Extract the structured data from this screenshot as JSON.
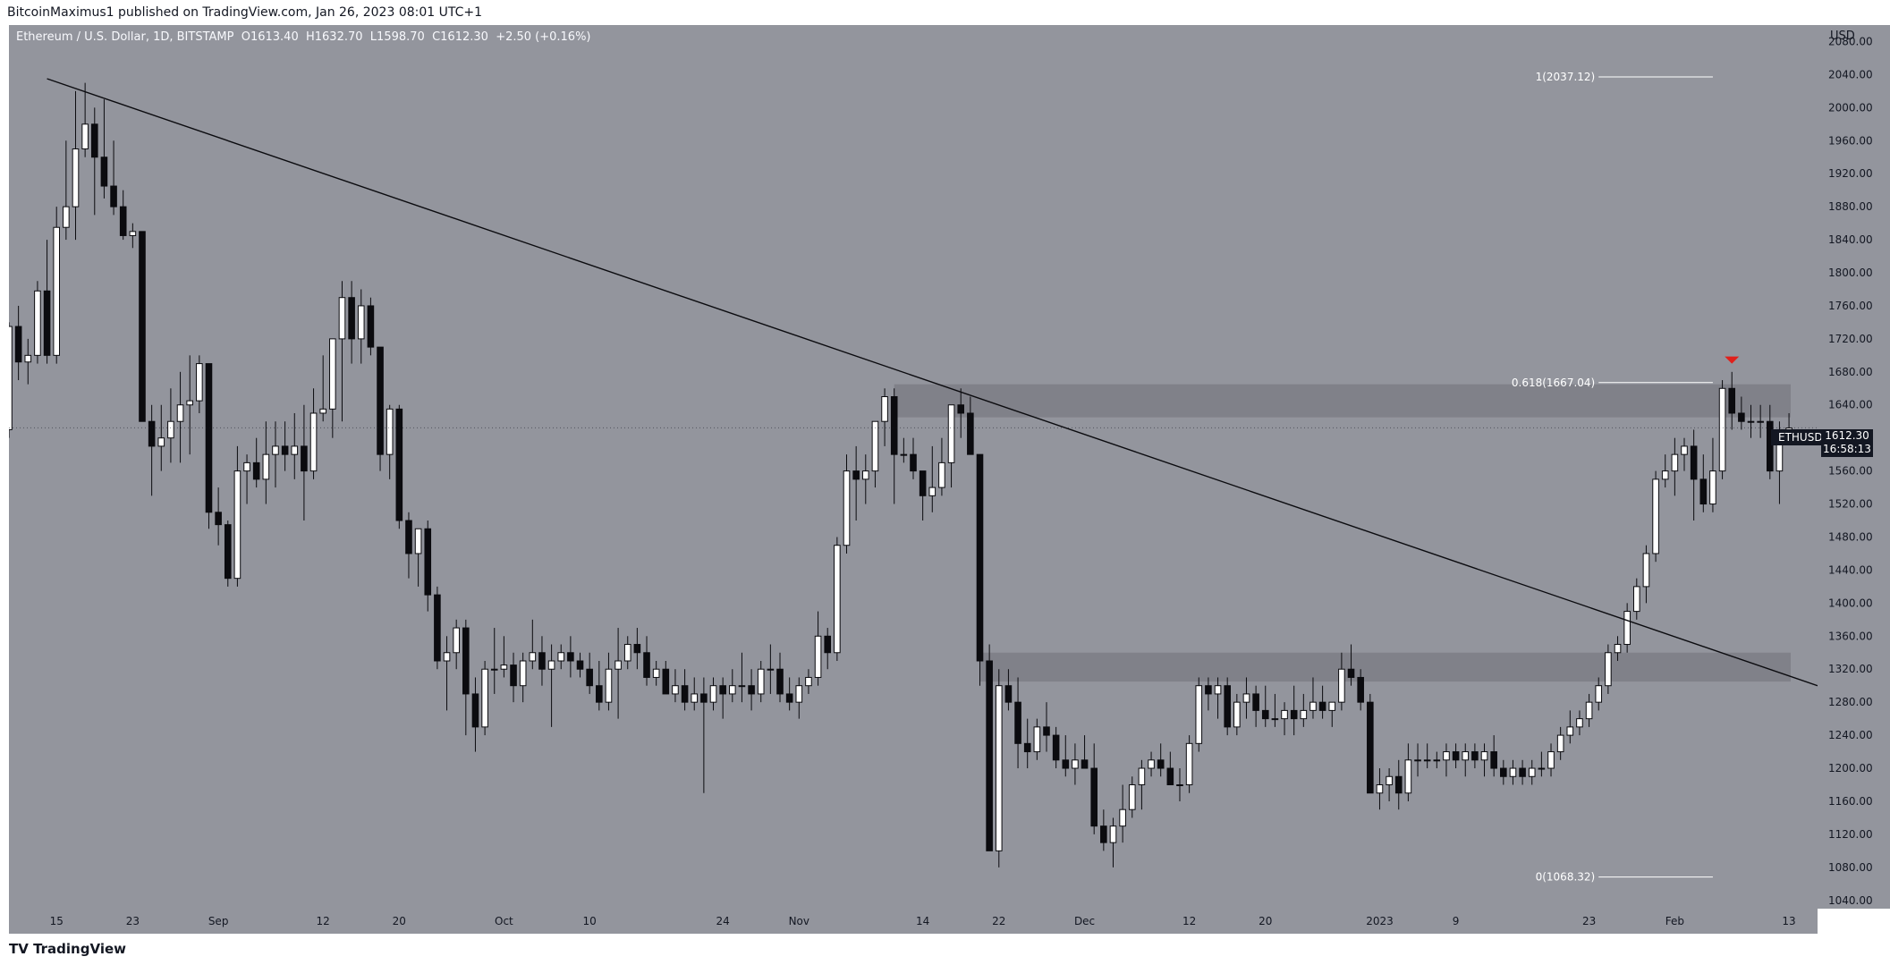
{
  "header": {
    "published": "BitcoinMaximus1 published on TradingView.com, Jan 26, 2023 08:01 UTC+1"
  },
  "symbol": {
    "name": "Ethereum / U.S. Dollar, 1D, BITSTAMP",
    "o_label": "O",
    "o": "1613.40",
    "h_label": "H",
    "h": "1632.70",
    "l_label": "L",
    "l": "1598.70",
    "c_label": "C",
    "c": "1612.30",
    "change": "+2.50 (+0.16%)"
  },
  "price_axis": {
    "currency": "USD",
    "ticks": [
      "2080.00",
      "2040.00",
      "2000.00",
      "1960.00",
      "1920.00",
      "1880.00",
      "1840.00",
      "1800.00",
      "1760.00",
      "1720.00",
      "1680.00",
      "1640.00",
      "1600.00",
      "1560.00",
      "1520.00",
      "1480.00",
      "1440.00",
      "1400.00",
      "1360.00",
      "1320.00",
      "1280.00",
      "1240.00",
      "1200.00",
      "1160.00",
      "1120.00",
      "1080.00",
      "1040.00"
    ]
  },
  "time_axis": {
    "labels": [
      "15",
      "23",
      "Sep",
      "12",
      "20",
      "Oct",
      "10",
      "24",
      "Nov",
      "14",
      "22",
      "Dec",
      "12",
      "20",
      "2023",
      "9",
      "23",
      "Feb",
      "13"
    ]
  },
  "last_price": {
    "ticker": "ETHUSD",
    "price": "1612.30",
    "countdown": "16:58:13"
  },
  "fib_labels": {
    "top": "1(2037.12)",
    "mid": "0.618(1667.04)",
    "bottom": "0(1068.32)"
  },
  "footer": {
    "brand": "TradingView"
  },
  "colors": {
    "plot_bg": "#93959d",
    "bull": "#ffffff",
    "bear": "#0b0b0f",
    "zone": "#7c7e86",
    "arrow": "#e0201b"
  },
  "chart_data": {
    "type": "candlestick",
    "title": "Ethereum / U.S. Dollar, 1D, BITSTAMP",
    "y_unit": "USD",
    "ylim": [
      1030,
      2100
    ],
    "x_range": [
      "2022-08-10",
      "2023-02-16"
    ],
    "candles": [
      [
        "2022-08-10",
        1610,
        1740,
        1600,
        1735
      ],
      [
        "2022-08-11",
        1735,
        1760,
        1670,
        1692
      ],
      [
        "2022-08-12",
        1692,
        1720,
        1665,
        1700
      ],
      [
        "2022-08-13",
        1700,
        1790,
        1690,
        1778
      ],
      [
        "2022-08-14",
        1778,
        1840,
        1690,
        1700
      ],
      [
        "2022-08-15",
        1700,
        1880,
        1690,
        1855
      ],
      [
        "2022-08-16",
        1855,
        1960,
        1840,
        1880
      ],
      [
        "2022-08-17",
        1880,
        2020,
        1840,
        1950
      ],
      [
        "2022-08-18",
        1950,
        2030,
        1940,
        1980
      ],
      [
        "2022-08-19",
        1980,
        2000,
        1870,
        1940
      ],
      [
        "2022-08-20",
        1940,
        2010,
        1890,
        1905
      ],
      [
        "2022-08-21",
        1905,
        1960,
        1870,
        1880
      ],
      [
        "2022-08-22",
        1880,
        1900,
        1840,
        1845
      ],
      [
        "2022-08-23",
        1845,
        1860,
        1830,
        1850
      ],
      [
        "2022-08-24",
        1850,
        1850,
        1620,
        1620
      ],
      [
        "2022-08-25",
        1620,
        1640,
        1530,
        1590
      ],
      [
        "2022-08-26",
        1590,
        1640,
        1560,
        1600
      ],
      [
        "2022-08-27",
        1600,
        1660,
        1570,
        1620
      ],
      [
        "2022-08-28",
        1620,
        1680,
        1570,
        1640
      ],
      [
        "2022-08-29",
        1640,
        1700,
        1580,
        1645
      ],
      [
        "2022-08-30",
        1645,
        1700,
        1630,
        1690
      ],
      [
        "2022-08-31",
        1690,
        1690,
        1490,
        1510
      ],
      [
        "2022-09-01",
        1510,
        1540,
        1470,
        1495
      ],
      [
        "2022-09-02",
        1495,
        1500,
        1420,
        1430
      ],
      [
        "2022-09-03",
        1430,
        1590,
        1420,
        1560
      ],
      [
        "2022-09-04",
        1560,
        1580,
        1520,
        1570
      ],
      [
        "2022-09-05",
        1570,
        1600,
        1540,
        1550
      ],
      [
        "2022-09-06",
        1550,
        1620,
        1520,
        1580
      ],
      [
        "2022-09-07",
        1580,
        1620,
        1540,
        1590
      ],
      [
        "2022-09-08",
        1590,
        1620,
        1560,
        1580
      ],
      [
        "2022-09-09",
        1580,
        1630,
        1550,
        1590
      ],
      [
        "2022-09-10",
        1590,
        1640,
        1500,
        1560
      ],
      [
        "2022-09-11",
        1560,
        1660,
        1550,
        1630
      ],
      [
        "2022-09-12",
        1630,
        1700,
        1620,
        1635
      ],
      [
        "2022-09-13",
        1635,
        1720,
        1600,
        1720
      ],
      [
        "2022-09-14",
        1720,
        1790,
        1620,
        1770
      ],
      [
        "2022-09-15",
        1770,
        1790,
        1690,
        1720
      ],
      [
        "2022-09-16",
        1720,
        1780,
        1690,
        1760
      ],
      [
        "2022-09-17",
        1760,
        1770,
        1700,
        1710
      ],
      [
        "2022-09-18",
        1710,
        1710,
        1560,
        1580
      ],
      [
        "2022-09-19",
        1580,
        1640,
        1550,
        1635
      ],
      [
        "2022-09-20",
        1635,
        1640,
        1490,
        1500
      ],
      [
        "2022-09-21",
        1500,
        1510,
        1430,
        1460
      ],
      [
        "2022-09-22",
        1460,
        1490,
        1420,
        1490
      ],
      [
        "2022-09-23",
        1490,
        1500,
        1390,
        1410
      ],
      [
        "2022-09-24",
        1410,
        1420,
        1320,
        1330
      ],
      [
        "2022-09-25",
        1330,
        1360,
        1270,
        1340
      ],
      [
        "2022-09-26",
        1340,
        1380,
        1320,
        1370
      ],
      [
        "2022-09-27",
        1370,
        1380,
        1240,
        1290
      ],
      [
        "2022-09-28",
        1290,
        1310,
        1220,
        1250
      ],
      [
        "2022-09-29",
        1250,
        1330,
        1240,
        1320
      ],
      [
        "2022-09-30",
        1320,
        1370,
        1290,
        1320
      ],
      [
        "2022-10-01",
        1320,
        1360,
        1310,
        1325
      ],
      [
        "2022-10-02",
        1325,
        1340,
        1280,
        1300
      ],
      [
        "2022-10-03",
        1300,
        1340,
        1280,
        1330
      ],
      [
        "2022-10-04",
        1330,
        1380,
        1320,
        1340
      ],
      [
        "2022-10-05",
        1340,
        1360,
        1300,
        1320
      ],
      [
        "2022-10-06",
        1320,
        1350,
        1250,
        1330
      ],
      [
        "2022-10-07",
        1330,
        1350,
        1320,
        1340
      ],
      [
        "2022-10-08",
        1340,
        1360,
        1310,
        1330
      ],
      [
        "2022-10-09",
        1330,
        1340,
        1310,
        1320
      ],
      [
        "2022-10-10",
        1320,
        1340,
        1290,
        1300
      ],
      [
        "2022-10-11",
        1300,
        1330,
        1270,
        1280
      ],
      [
        "2022-10-12",
        1280,
        1340,
        1270,
        1320
      ],
      [
        "2022-10-13",
        1320,
        1370,
        1260,
        1330
      ],
      [
        "2022-10-14",
        1330,
        1360,
        1320,
        1350
      ],
      [
        "2022-10-15",
        1350,
        1370,
        1320,
        1340
      ],
      [
        "2022-10-16",
        1340,
        1360,
        1300,
        1310
      ],
      [
        "2022-10-17",
        1310,
        1330,
        1300,
        1320
      ],
      [
        "2022-10-18",
        1320,
        1330,
        1290,
        1290
      ],
      [
        "2022-10-19",
        1290,
        1320,
        1280,
        1300
      ],
      [
        "2022-10-20",
        1300,
        1320,
        1270,
        1280
      ],
      [
        "2022-10-21",
        1280,
        1310,
        1270,
        1290
      ],
      [
        "2022-10-22",
        1290,
        1310,
        1170,
        1280
      ],
      [
        "2022-10-23",
        1280,
        1310,
        1270,
        1300
      ],
      [
        "2022-10-24",
        1300,
        1310,
        1260,
        1290
      ],
      [
        "2022-10-25",
        1290,
        1320,
        1280,
        1300
      ],
      [
        "2022-10-26",
        1300,
        1340,
        1280,
        1300
      ],
      [
        "2022-10-27",
        1300,
        1320,
        1270,
        1290
      ],
      [
        "2022-10-28",
        1290,
        1330,
        1280,
        1320
      ],
      [
        "2022-10-29",
        1320,
        1350,
        1290,
        1320
      ],
      [
        "2022-10-30",
        1320,
        1340,
        1280,
        1290
      ],
      [
        "2022-10-31",
        1290,
        1310,
        1270,
        1280
      ],
      [
        "2022-11-01",
        1280,
        1310,
        1260,
        1300
      ],
      [
        "2022-11-02",
        1300,
        1320,
        1290,
        1310
      ],
      [
        "2022-11-03",
        1310,
        1390,
        1300,
        1360
      ],
      [
        "2022-11-04",
        1360,
        1370,
        1320,
        1340
      ],
      [
        "2022-11-05",
        1340,
        1480,
        1330,
        1470
      ],
      [
        "2022-11-06",
        1470,
        1580,
        1460,
        1560
      ],
      [
        "2022-11-07",
        1560,
        1590,
        1500,
        1550
      ],
      [
        "2022-11-08",
        1550,
        1580,
        1520,
        1560
      ],
      [
        "2022-11-09",
        1560,
        1620,
        1540,
        1620
      ],
      [
        "2022-11-10",
        1620,
        1660,
        1590,
        1650
      ],
      [
        "2022-11-11",
        1650,
        1660,
        1520,
        1580
      ],
      [
        "2022-11-12",
        1580,
        1600,
        1570,
        1580
      ],
      [
        "2022-11-13",
        1580,
        1600,
        1550,
        1560
      ],
      [
        "2022-11-14",
        1560,
        1560,
        1500,
        1530
      ],
      [
        "2022-11-15",
        1530,
        1590,
        1510,
        1540
      ],
      [
        "2022-11-16",
        1540,
        1600,
        1530,
        1570
      ],
      [
        "2022-11-17",
        1570,
        1640,
        1540,
        1640
      ],
      [
        "2022-11-18",
        1640,
        1660,
        1600,
        1630
      ],
      [
        "2022-11-19",
        1630,
        1650,
        1580,
        1580
      ],
      [
        "2022-11-20",
        1580,
        1580,
        1300,
        1330
      ],
      [
        "2022-11-21",
        1330,
        1350,
        1110,
        1100
      ],
      [
        "2022-11-22",
        1100,
        1320,
        1080,
        1300
      ],
      [
        "2022-11-23",
        1300,
        1320,
        1270,
        1280
      ],
      [
        "2022-11-24",
        1280,
        1310,
        1200,
        1230
      ],
      [
        "2022-11-25",
        1230,
        1260,
        1200,
        1220
      ],
      [
        "2022-11-26",
        1220,
        1260,
        1210,
        1250
      ],
      [
        "2022-11-27",
        1250,
        1280,
        1220,
        1240
      ],
      [
        "2022-11-28",
        1240,
        1250,
        1200,
        1210
      ],
      [
        "2022-11-29",
        1210,
        1240,
        1190,
        1200
      ],
      [
        "2022-11-30",
        1200,
        1230,
        1180,
        1210
      ],
      [
        "2022-12-01",
        1210,
        1240,
        1200,
        1200
      ],
      [
        "2022-12-02",
        1200,
        1230,
        1120,
        1130
      ],
      [
        "2022-12-03",
        1130,
        1150,
        1100,
        1110
      ],
      [
        "2022-12-04",
        1110,
        1140,
        1080,
        1130
      ],
      [
        "2022-12-05",
        1130,
        1180,
        1110,
        1150
      ],
      [
        "2022-12-06",
        1150,
        1190,
        1140,
        1180
      ],
      [
        "2022-12-07",
        1180,
        1210,
        1150,
        1200
      ],
      [
        "2022-12-08",
        1200,
        1220,
        1190,
        1210
      ],
      [
        "2022-12-09",
        1210,
        1230,
        1190,
        1200
      ],
      [
        "2022-12-10",
        1200,
        1220,
        1180,
        1180
      ],
      [
        "2022-12-11",
        1180,
        1200,
        1160,
        1180
      ],
      [
        "2022-12-12",
        1180,
        1240,
        1170,
        1230
      ],
      [
        "2022-12-13",
        1230,
        1310,
        1220,
        1300
      ],
      [
        "2022-12-14",
        1300,
        1310,
        1270,
        1290
      ],
      [
        "2022-12-15",
        1290,
        1310,
        1260,
        1300
      ],
      [
        "2022-12-16",
        1300,
        1310,
        1240,
        1250
      ],
      [
        "2022-12-17",
        1250,
        1290,
        1240,
        1280
      ],
      [
        "2022-12-18",
        1280,
        1310,
        1260,
        1290
      ],
      [
        "2022-12-19",
        1290,
        1300,
        1250,
        1270
      ],
      [
        "2022-12-20",
        1270,
        1300,
        1250,
        1260
      ],
      [
        "2022-12-21",
        1260,
        1290,
        1250,
        1260
      ],
      [
        "2022-12-22",
        1260,
        1280,
        1240,
        1270
      ],
      [
        "2022-12-23",
        1270,
        1300,
        1240,
        1260
      ],
      [
        "2022-12-24",
        1260,
        1290,
        1250,
        1270
      ],
      [
        "2022-12-25",
        1270,
        1310,
        1260,
        1280
      ],
      [
        "2022-12-26",
        1280,
        1300,
        1260,
        1270
      ],
      [
        "2022-12-27",
        1270,
        1280,
        1250,
        1280
      ],
      [
        "2022-12-28",
        1280,
        1340,
        1270,
        1320
      ],
      [
        "2022-12-29",
        1320,
        1350,
        1300,
        1310
      ],
      [
        "2022-12-30",
        1310,
        1320,
        1270,
        1280
      ],
      [
        "2022-12-31",
        1280,
        1290,
        1180,
        1170
      ],
      [
        "2023-01-01",
        1170,
        1200,
        1150,
        1180
      ],
      [
        "2023-01-02",
        1180,
        1200,
        1160,
        1190
      ],
      [
        "2023-01-03",
        1190,
        1210,
        1150,
        1170
      ],
      [
        "2023-01-04",
        1170,
        1230,
        1160,
        1210
      ],
      [
        "2023-01-05",
        1210,
        1230,
        1190,
        1210
      ],
      [
        "2023-01-06",
        1210,
        1230,
        1200,
        1210
      ],
      [
        "2023-01-07",
        1210,
        1220,
        1200,
        1210
      ],
      [
        "2023-01-08",
        1210,
        1230,
        1190,
        1220
      ],
      [
        "2023-01-09",
        1220,
        1230,
        1200,
        1210
      ],
      [
        "2023-01-10",
        1210,
        1230,
        1190,
        1220
      ],
      [
        "2023-01-11",
        1220,
        1230,
        1200,
        1210
      ],
      [
        "2023-01-12",
        1210,
        1230,
        1190,
        1220
      ],
      [
        "2023-01-13",
        1220,
        1240,
        1190,
        1200
      ],
      [
        "2023-01-14",
        1200,
        1210,
        1180,
        1190
      ],
      [
        "2023-01-15",
        1190,
        1210,
        1180,
        1200
      ],
      [
        "2023-01-16",
        1200,
        1210,
        1180,
        1190
      ],
      [
        "2023-01-17",
        1190,
        1210,
        1180,
        1200
      ],
      [
        "2023-01-18",
        1200,
        1220,
        1190,
        1200
      ],
      [
        "2023-01-19",
        1200,
        1230,
        1190,
        1220
      ],
      [
        "2023-01-20",
        1220,
        1250,
        1210,
        1240
      ],
      [
        "2023-01-21",
        1240,
        1270,
        1230,
        1250
      ],
      [
        "2023-01-22",
        1250,
        1270,
        1240,
        1260
      ],
      [
        "2023-01-23",
        1260,
        1290,
        1250,
        1280
      ],
      [
        "2023-01-24",
        1280,
        1310,
        1270,
        1300
      ],
      [
        "2023-01-25",
        1300,
        1350,
        1290,
        1340
      ],
      [
        "2023-01-26",
        1340,
        1360,
        1330,
        1350
      ],
      [
        "2023-01-27",
        1350,
        1400,
        1340,
        1390
      ],
      [
        "2023-01-28",
        1390,
        1430,
        1380,
        1420
      ],
      [
        "2023-01-29",
        1420,
        1470,
        1400,
        1460
      ],
      [
        "2023-01-30",
        1460,
        1560,
        1450,
        1550
      ],
      [
        "2023-01-31",
        1550,
        1580,
        1540,
        1560
      ],
      [
        "2023-02-01",
        1560,
        1600,
        1530,
        1580
      ],
      [
        "2023-02-02",
        1580,
        1600,
        1560,
        1590
      ],
      [
        "2023-02-03",
        1590,
        1610,
        1500,
        1550
      ],
      [
        "2023-02-04",
        1550,
        1580,
        1510,
        1520
      ],
      [
        "2023-02-05",
        1520,
        1600,
        1510,
        1560
      ],
      [
        "2023-02-06",
        1560,
        1670,
        1550,
        1660
      ],
      [
        "2023-02-07",
        1660,
        1680,
        1610,
        1630
      ],
      [
        "2023-02-08",
        1630,
        1650,
        1610,
        1620
      ],
      [
        "2023-02-09",
        1620,
        1640,
        1600,
        1620
      ],
      [
        "2023-02-10",
        1620,
        1640,
        1600,
        1620
      ],
      [
        "2023-02-11",
        1620,
        1640,
        1550,
        1560
      ],
      [
        "2023-02-12",
        1560,
        1620,
        1520,
        1610
      ],
      [
        "2023-02-13",
        1610,
        1630,
        1600,
        1612
      ]
    ],
    "annotations": {
      "resistance_zone": [
        1625,
        1665
      ],
      "support_zone": [
        1305,
        1340
      ],
      "fib_levels": {
        "1": 2037.12,
        "0.618": 1667.04,
        "0": 1068.32
      },
      "trendline": [
        [
          "2022-08-14",
          2035
        ],
        [
          "2023-02-16",
          1300
        ]
      ],
      "arrow": "2023-02-07"
    }
  }
}
